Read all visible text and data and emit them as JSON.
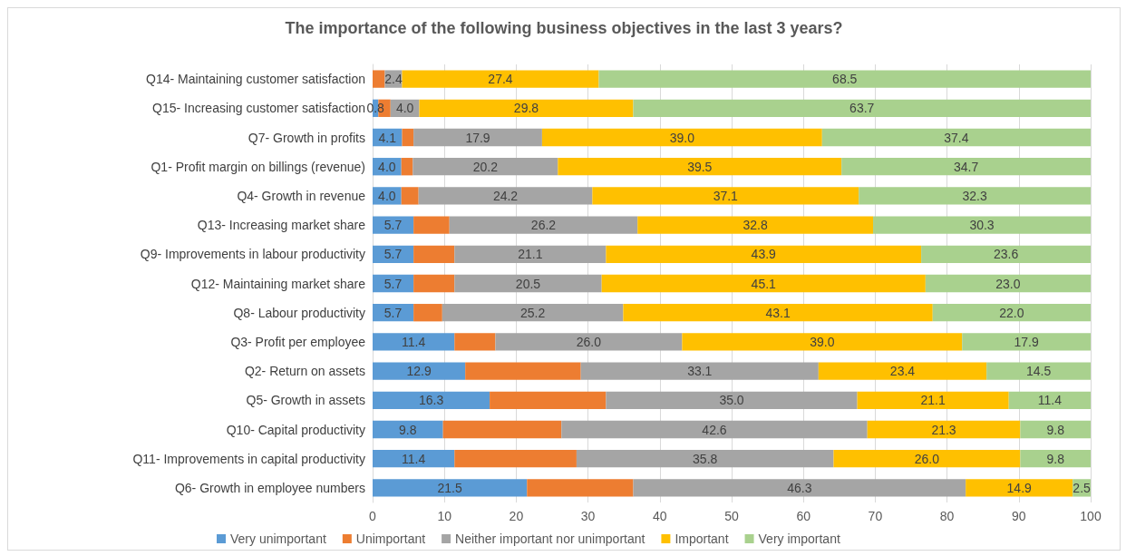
{
  "chart_data": {
    "type": "bar",
    "orientation": "horizontal",
    "stacked": true,
    "title": "The importance of the following business objectives in the last 3 years?",
    "categories": [
      "Q14- Maintaining customer satisfaction",
      "Q15- Increasing customer satisfaction",
      "Q7- Growth in profits",
      "Q1- Profit margin on billings (revenue)",
      "Q4- Growth in revenue",
      "Q13- Increasing market share",
      "Q9- Improvements in labour productivity",
      "Q12- Maintaining market share",
      "Q8- Labour productivity",
      "Q3- Profit per employee",
      "Q2- Return on assets",
      "Q5- Growth in assets",
      "Q10- Capital productivity",
      "Q11- Improvements in capital productivity",
      "Q6- Growth in employee numbers"
    ],
    "series": [
      {
        "name": "Very unimportant",
        "color": "#5b9bd5",
        "values": [
          0,
          0.8,
          4.1,
          4.0,
          4.0,
          5.7,
          5.7,
          5.7,
          5.7,
          11.4,
          12.9,
          16.3,
          9.8,
          11.4,
          21.5
        ],
        "value_labels": [
          null,
          "0.8",
          "4.1",
          "4.0",
          "4.0",
          "5.7",
          "5.7",
          "5.7",
          "5.7",
          "11.4",
          "12.9",
          "16.3",
          "9.8",
          "11.4",
          "21.5"
        ]
      },
      {
        "name": "Unimportant",
        "color": "#ed7d31",
        "values": [
          1.7,
          1.7,
          1.6,
          1.6,
          2.4,
          5.0,
          5.7,
          5.7,
          4.0,
          5.7,
          16.1,
          16.2,
          16.5,
          17.0,
          14.8
        ],
        "value_labels": [
          null,
          null,
          null,
          null,
          null,
          null,
          null,
          null,
          null,
          null,
          null,
          null,
          null,
          null,
          null
        ]
      },
      {
        "name": "Neither important nor unimportant",
        "color": "#a5a5a5",
        "values": [
          2.4,
          4.0,
          17.9,
          20.2,
          24.2,
          26.2,
          21.1,
          20.5,
          25.2,
          26.0,
          33.1,
          35.0,
          42.6,
          35.8,
          46.3
        ],
        "value_labels": [
          "2.4",
          "4.0",
          "17.9",
          "20.2",
          "24.2",
          "26.2",
          "21.1",
          "20.5",
          "25.2",
          "26.0",
          "33.1",
          "35.0",
          "42.6",
          "35.8",
          "46.3"
        ]
      },
      {
        "name": "Important",
        "color": "#ffc000",
        "values": [
          27.4,
          29.8,
          39.0,
          39.5,
          37.1,
          32.8,
          43.9,
          45.1,
          43.1,
          39.0,
          23.4,
          21.1,
          21.3,
          26.0,
          14.9
        ],
        "value_labels": [
          "27.4",
          "29.8",
          "39.0",
          "39.5",
          "37.1",
          "32.8",
          "43.9",
          "45.1",
          "43.1",
          "39.0",
          "23.4",
          "21.1",
          "21.3",
          "26.0",
          "14.9"
        ]
      },
      {
        "name": "Very important",
        "color": "#a9d18e",
        "values": [
          68.5,
          63.7,
          37.4,
          34.7,
          32.3,
          30.3,
          23.6,
          23.0,
          22.0,
          17.9,
          14.5,
          11.4,
          9.8,
          9.8,
          2.5
        ],
        "value_labels": [
          "68.5",
          "63.7",
          "37.4",
          "34.7",
          "32.3",
          "30.3",
          "23.6",
          "23.0",
          "22.0",
          "17.9",
          "14.5",
          "11.4",
          "9.8",
          "9.8",
          "2.5"
        ]
      }
    ],
    "xlim": [
      0,
      100
    ],
    "xticks": [
      0,
      10,
      20,
      30,
      40,
      50,
      60,
      70,
      80,
      90,
      100
    ],
    "grid": "x",
    "legend": "bottom left"
  }
}
